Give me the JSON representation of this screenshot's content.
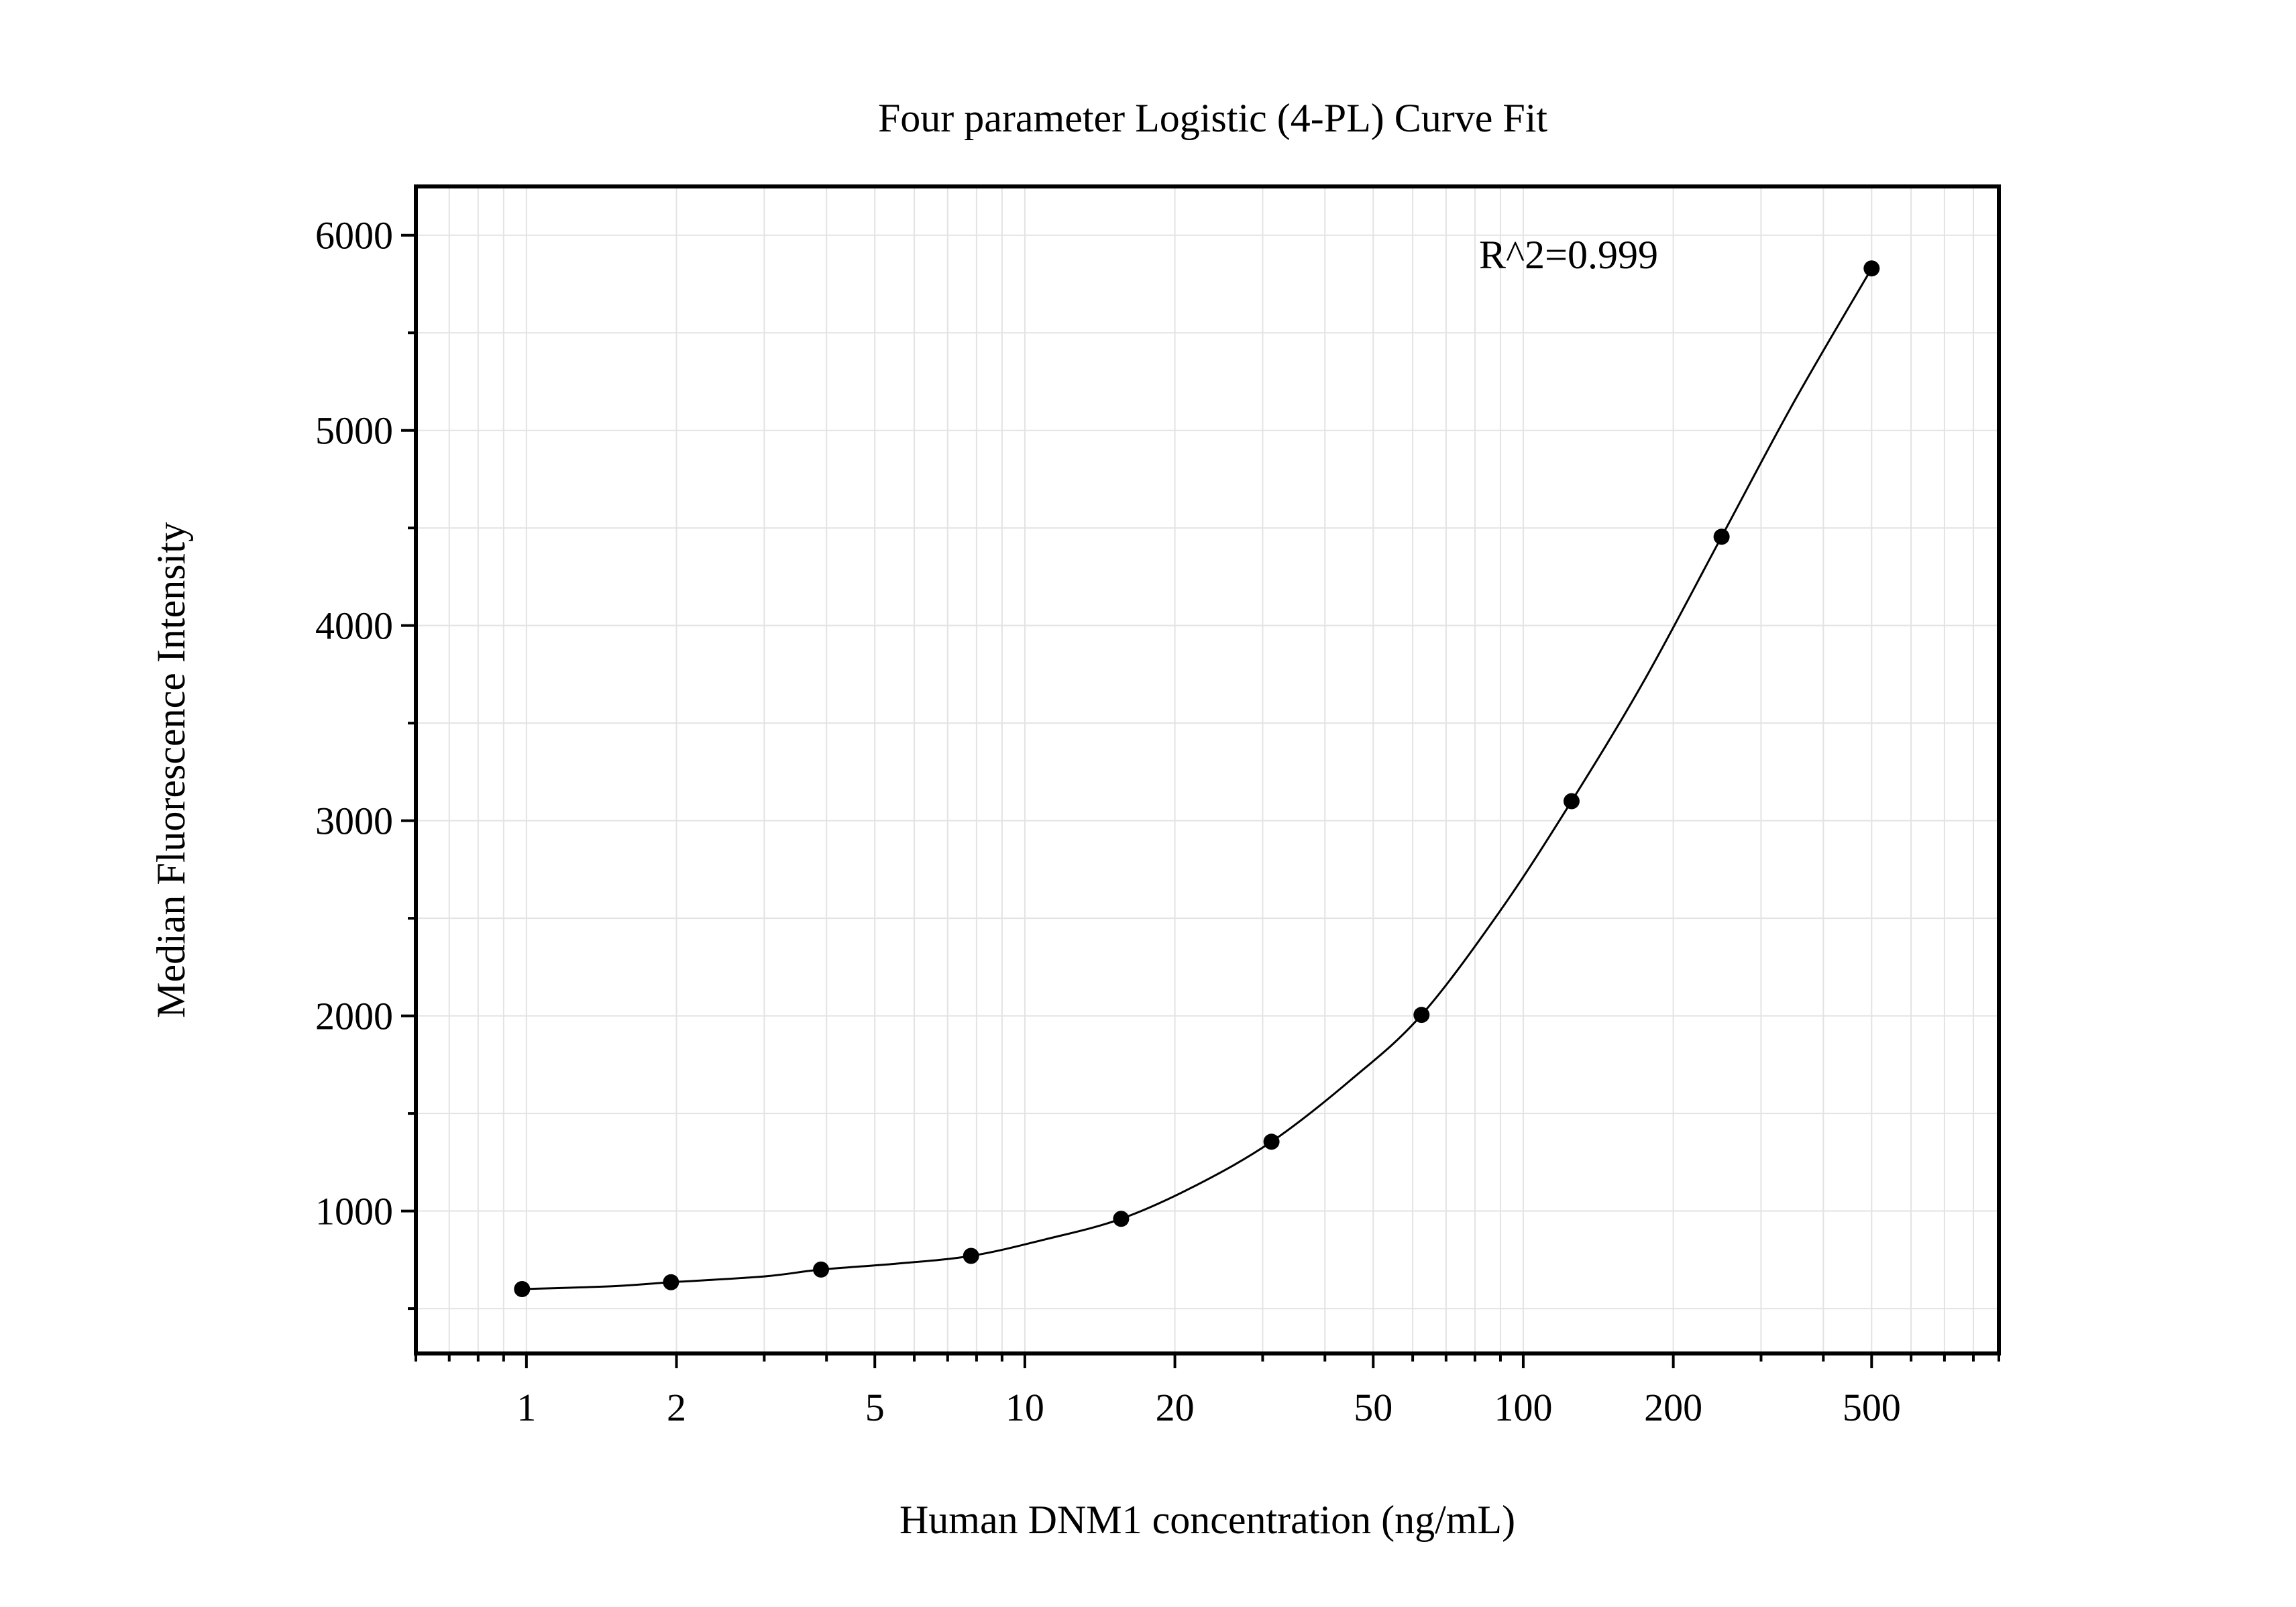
{
  "chart_data": {
    "type": "scatter",
    "title": "Four parameter Logistic (4-PL) Curve Fit",
    "xlabel": "Human DNM1 concentration (ng/mL)",
    "ylabel": "Median Fluorescence Intensity",
    "annotation": "R^2=0.999",
    "x_scale": "log",
    "xlim": [
      0.6,
      900
    ],
    "ylim": [
      270,
      6250
    ],
    "x_ticks": [
      1,
      2,
      5,
      10,
      20,
      50,
      100,
      200,
      500
    ],
    "x_tick_labels": [
      "1",
      "2",
      "5",
      "10",
      "20",
      "50",
      "100",
      "200",
      "500"
    ],
    "y_ticks": [
      1000,
      2000,
      3000,
      4000,
      5000,
      6000
    ],
    "y_tick_labels": [
      "1000",
      "2000",
      "3000",
      "4000",
      "5000",
      "6000"
    ],
    "grid": true,
    "legend": "none",
    "series": [
      {
        "x": [
          0.98,
          1.95,
          3.9,
          7.8,
          15.6,
          31.25,
          62.5,
          125,
          250,
          500
        ],
        "y": [
          600,
          635,
          700,
          770,
          960,
          1355,
          2005,
          3100,
          4455,
          5830
        ]
      }
    ],
    "fit_curve": {
      "x": [
        0.98,
        1.5,
        1.95,
        3,
        3.9,
        5.5,
        7.8,
        11,
        15.6,
        22,
        31.25,
        45,
        62.5,
        90,
        125,
        175,
        250,
        350,
        500
      ],
      "y": [
        600,
        615,
        635,
        665,
        700,
        730,
        770,
        855,
        960,
        1130,
        1355,
        1670,
        2005,
        2540,
        3100,
        3720,
        4455,
        5150,
        5830
      ]
    },
    "colors": {
      "points": "#000000",
      "curve": "#000000",
      "grid": "#e3e3e3",
      "frame": "#000000"
    }
  }
}
